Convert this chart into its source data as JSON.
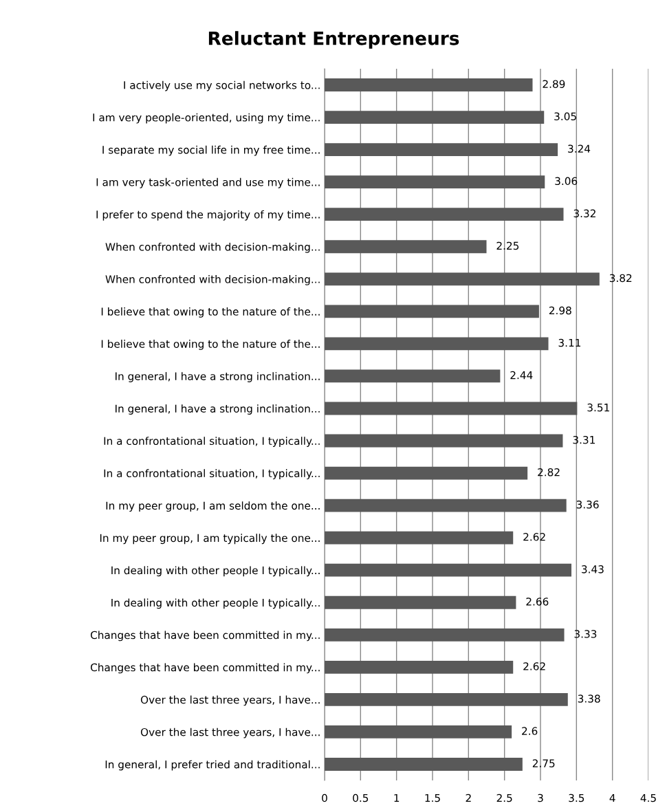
{
  "chart_data": {
    "type": "bar",
    "orientation": "horizontal",
    "title": "Reluctant Entrepreneurs",
    "categories": [
      "I actively use my social networks to...",
      "I am very people-oriented, using my time...",
      "I separate my social life in my free time...",
      "I am very task-oriented and use my time...",
      "I prefer to spend the majority of my time...",
      "When confronted with decision-making...",
      "When confronted with decision-making...",
      "I believe that owing to the nature of the...",
      "I believe that owing to the nature of the...",
      "In general, I have a strong inclination...",
      "In general, I have a strong inclination...",
      "In a confrontational situation, I typically...",
      "In a confrontational situation, I typically...",
      "In my peer group, I am seldom the one...",
      "In my peer group, I am typically the one...",
      "In dealing with other people I typically...",
      "In dealing with other people I typically...",
      "Changes that have been committed in my...",
      "Changes that have been committed in my...",
      "Over the last three years, I have...",
      "Over the last three years, I have...",
      "In general, I prefer tried and traditional..."
    ],
    "values": [
      2.89,
      3.05,
      3.24,
      3.06,
      3.32,
      2.25,
      3.82,
      2.98,
      3.11,
      2.44,
      3.51,
      3.31,
      2.82,
      3.36,
      2.62,
      3.43,
      2.66,
      3.33,
      2.62,
      3.38,
      2.6,
      2.75
    ],
    "color": "#595959",
    "xlim": [
      0,
      4.5
    ],
    "xticks": [
      0,
      0.5,
      1,
      1.5,
      2,
      2.5,
      3,
      3.5,
      4,
      4.5
    ],
    "grid": "x",
    "data_labels": true
  }
}
